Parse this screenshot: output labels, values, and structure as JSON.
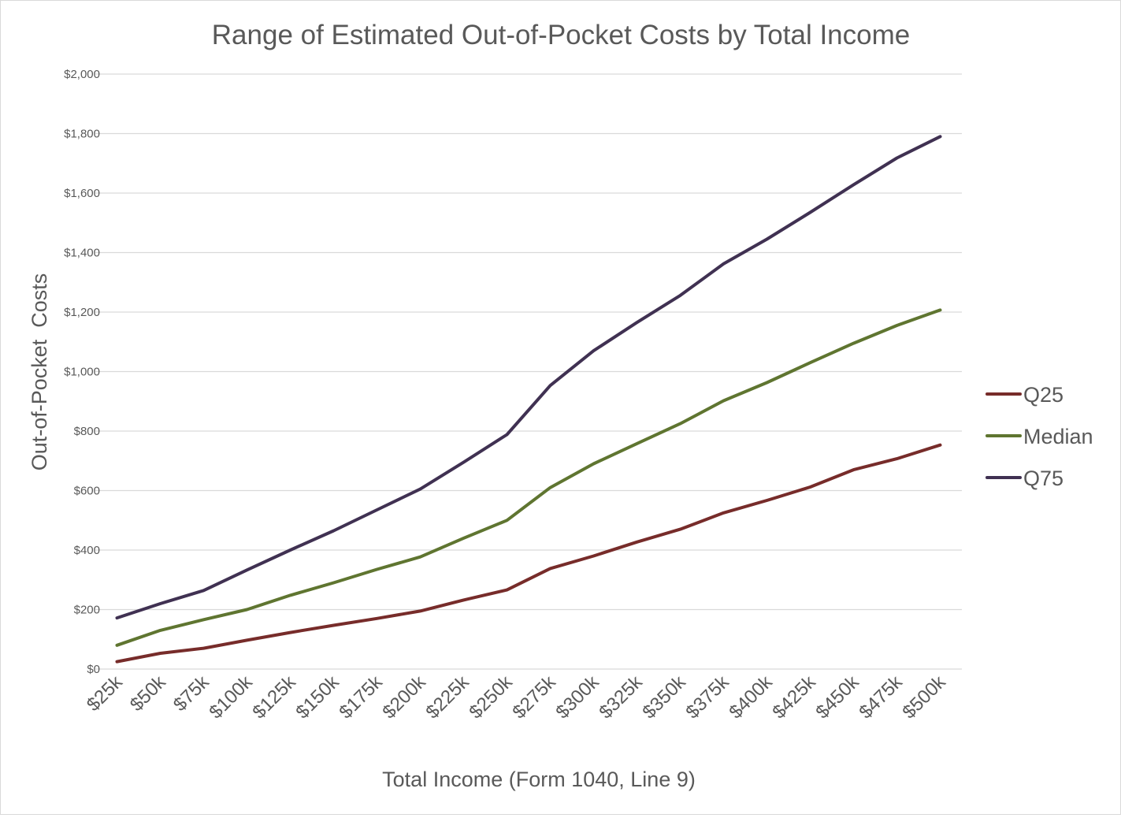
{
  "chart_data": {
    "type": "line",
    "title": "Range of Estimated Out-of-Pocket Costs by Total Income",
    "xlabel": "Total Income (Form 1040, Line 9)",
    "ylabel": "Out-of-Pocket  Costs",
    "categories": [
      "$25k",
      "$50k",
      "$75k",
      "$100k",
      "$125k",
      "$150k",
      "$175k",
      "$200k",
      "$225k",
      "$250k",
      "$275k",
      "$300k",
      "$325k",
      "$350k",
      "$375k",
      "$400k",
      "$425k",
      "$450k",
      "$475k",
      "$500k"
    ],
    "ylim": [
      0,
      2000
    ],
    "yticks": [
      0,
      200,
      400,
      600,
      800,
      1000,
      1200,
      1400,
      1600,
      1800,
      2000
    ],
    "ytick_labels": [
      "$0",
      "$200",
      "$400",
      "$600",
      "$800",
      "$1,000",
      "$1,200",
      "$1,400",
      "$1,600",
      "$1,800",
      "$2,000"
    ],
    "grid": true,
    "legend_position": "right",
    "series": [
      {
        "name": "Q25",
        "color": "#772c2a",
        "values": [
          25,
          53,
          70,
          97,
          123,
          147,
          170,
          195,
          232,
          266,
          338,
          380,
          427,
          470,
          525,
          567,
          612,
          670,
          707,
          753
        ]
      },
      {
        "name": "Median",
        "color": "#5f7530",
        "values": [
          80,
          130,
          166,
          200,
          248,
          290,
          335,
          377,
          440,
          500,
          610,
          690,
          758,
          825,
          902,
          963,
          1030,
          1095,
          1155,
          1207
        ]
      },
      {
        "name": "Q75",
        "color": "#403152",
        "values": [
          172,
          220,
          264,
          333,
          400,
          465,
          535,
          605,
          695,
          788,
          953,
          1070,
          1165,
          1256,
          1362,
          1445,
          1535,
          1628,
          1718,
          1790
        ]
      }
    ]
  }
}
